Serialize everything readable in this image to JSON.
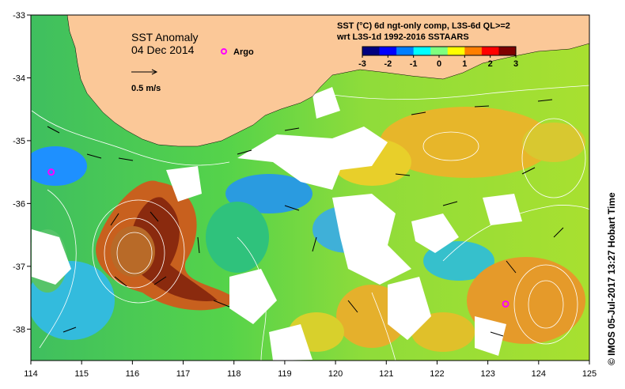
{
  "title": {
    "line1": "SST Anomaly",
    "line2": "04 Dec 2014"
  },
  "legend": {
    "argo_label": "Argo",
    "argo_color": "#ff00ff",
    "velocity_scale_label": "0.5 m/s"
  },
  "colorbar": {
    "title_line1": "SST (°C) 6d ngt-only comp, L3S-6d QL>=2",
    "title_line2": "wrt L3S-1d 1992-2016 SSTAARS",
    "ticks": [
      "-3",
      "-2",
      "-1",
      "0",
      "1",
      "2",
      "3"
    ],
    "min": -3,
    "max": 3,
    "colors": [
      "#00007f",
      "#0000ff",
      "#007fff",
      "#00ffff",
      "#7fff7f",
      "#ffff00",
      "#ff7f00",
      "#ff0000",
      "#7f0000"
    ]
  },
  "axes": {
    "x_ticks": [
      "114",
      "115",
      "116",
      "117",
      "118",
      "119",
      "120",
      "121",
      "122",
      "123",
      "124",
      "125"
    ],
    "y_ticks": [
      "-33",
      "-34",
      "-35",
      "-36",
      "-37",
      "-38"
    ],
    "lon_range": [
      114,
      125
    ],
    "lat_range": [
      -38.5,
      -33
    ]
  },
  "colors": {
    "land": "#fbc898",
    "no_data": "#ffffff",
    "contour": "#ffffff",
    "arrow": "#000000"
  },
  "argo_floats": [
    {
      "lon": 114.4,
      "lat": -35.5
    },
    {
      "lon": 123.35,
      "lat": -37.6
    }
  ],
  "credit": "© IMOS 05-Jul-2017 13:27 Hobart Time"
}
